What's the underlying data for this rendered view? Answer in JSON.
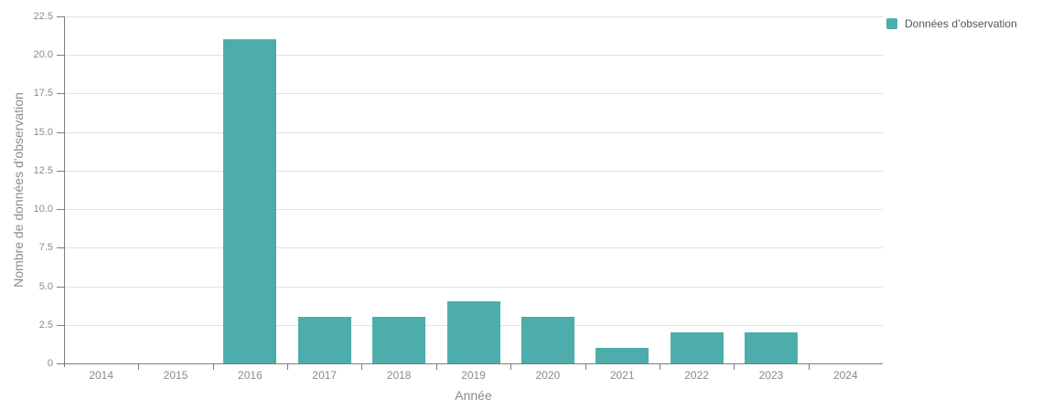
{
  "chart_data": {
    "type": "bar",
    "title": "",
    "categories": [
      "2014",
      "2015",
      "2016",
      "2017",
      "2018",
      "2019",
      "2020",
      "2021",
      "2022",
      "2023",
      "2024"
    ],
    "series": [
      {
        "name": "Données d’observation",
        "values": [
          0,
          0,
          21,
          3,
          3,
          4,
          3,
          1,
          2,
          2,
          0
        ],
        "color": "#4CADAB"
      }
    ],
    "xlabel": "Année",
    "ylabel": "Nombre de données d'observation",
    "ylim": [
      0,
      22.5
    ],
    "ytick_step": 2.5,
    "ytick_labels": [
      "0",
      "2.5",
      "5.0",
      "7.5",
      "10.0",
      "12.5",
      "15.0",
      "17.5",
      "20.0",
      "22.5"
    ],
    "grid": true,
    "legend_position": "top-right"
  },
  "colors": {
    "bar": "#4CADAB",
    "gridline": "#e2e2e2",
    "axis_line": "#7d7d7d",
    "tick_label": "#8b8b8b",
    "axis_title": "#8b8b8b",
    "legend_text": "#555555",
    "background": "#ffffff"
  }
}
